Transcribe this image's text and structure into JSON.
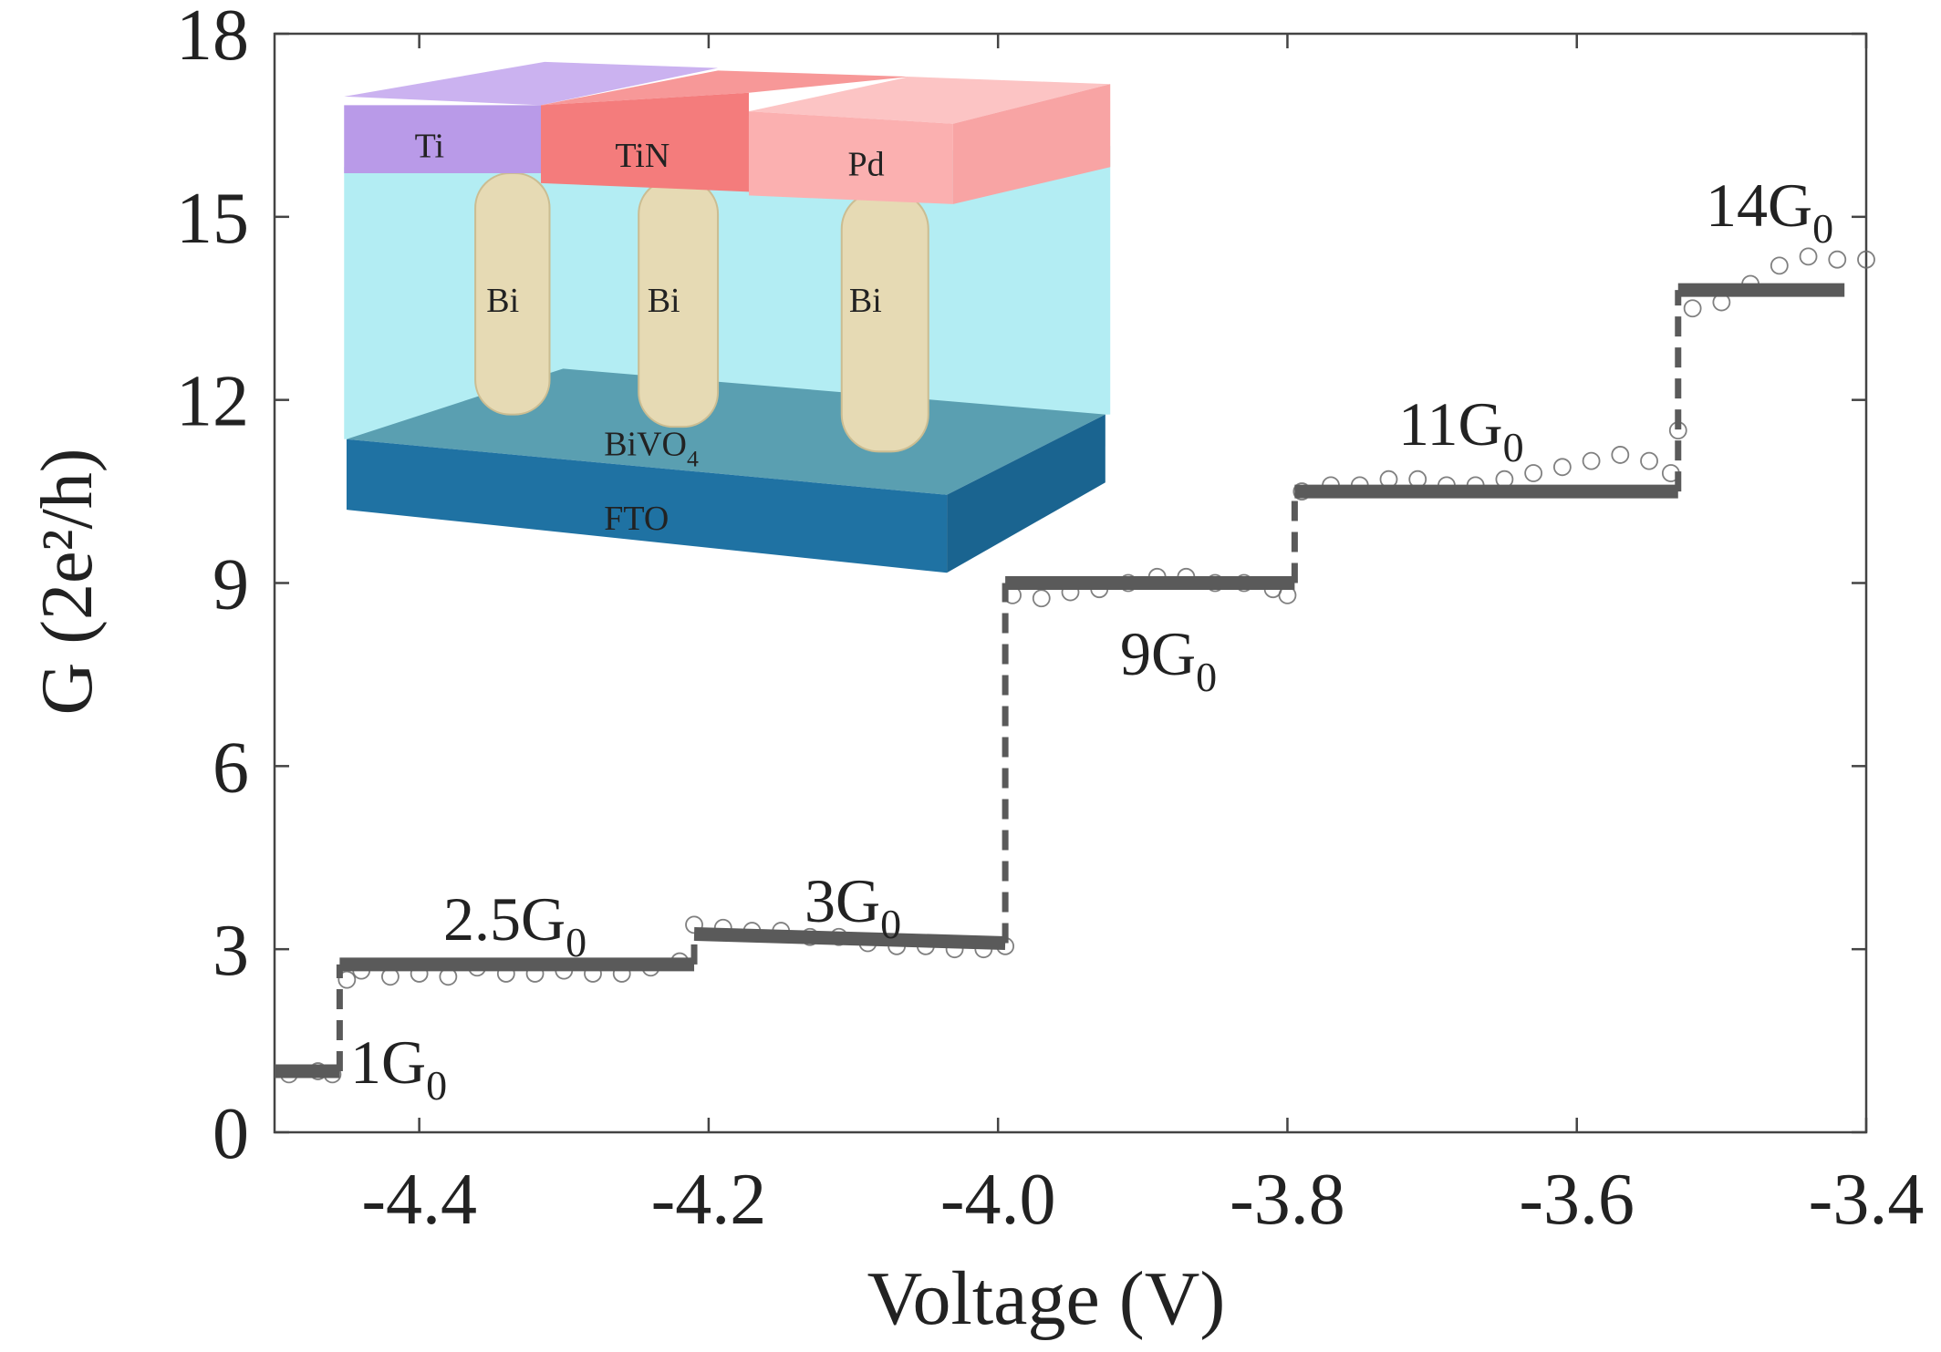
{
  "chart_data": {
    "type": "step",
    "xlabel": "Voltage (V)",
    "ylabel": "G (2e²/h)",
    "xlim": [
      -4.5,
      -3.4
    ],
    "xticks": [
      -4.4,
      -4.2,
      {
        "value": -4,
        "label": "-4.0"
      },
      -3.8,
      -3.6,
      -3.4
    ],
    "ylim": [
      0,
      18
    ],
    "yticks": [
      0,
      3,
      6,
      9,
      12,
      15,
      18
    ],
    "series": [
      {
        "type": "step",
        "color": "#5a5a5a",
        "x": [
          -4.5,
          -4.455,
          -4.455,
          -4.21,
          -4.21,
          -3.995,
          -3.995,
          -3.795,
          -3.795,
          -3.53,
          -3.53,
          -3.415
        ],
        "values": [
          1,
          1,
          2.75,
          2.75,
          3.25,
          3.1,
          9,
          9,
          10.5,
          10.5,
          13.8,
          13.8
        ]
      },
      {
        "type": "scatter",
        "color": "#6a6a6a",
        "x": [
          -4.49,
          -4.47,
          -4.46,
          -4.45,
          -4.44,
          -4.42,
          -4.4,
          -4.38,
          -4.36,
          -4.34,
          -4.32,
          -4.3,
          -4.28,
          -4.26,
          -4.24,
          -4.22,
          -4.21,
          -4.19,
          -4.17,
          -4.15,
          -4.13,
          -4.11,
          -4.09,
          -4.07,
          -4.05,
          -4.03,
          -4.01,
          -3.995,
          -3.99,
          -3.97,
          -3.95,
          -3.93,
          -3.91,
          -3.89,
          -3.87,
          -3.85,
          -3.83,
          -3.81,
          -3.8,
          -3.79,
          -3.77,
          -3.75,
          -3.73,
          -3.71,
          -3.69,
          -3.67,
          -3.65,
          -3.63,
          -3.61,
          -3.59,
          -3.57,
          -3.55,
          -3.535,
          -3.53,
          -3.52,
          -3.5,
          -3.48,
          -3.46,
          -3.44,
          -3.42,
          -3.4
        ],
        "values": [
          0.95,
          1,
          0.95,
          2.5,
          2.65,
          2.55,
          2.6,
          2.55,
          2.7,
          2.6,
          2.6,
          2.65,
          2.6,
          2.6,
          2.7,
          2.8,
          3.4,
          3.35,
          3.3,
          3.3,
          3.2,
          3.2,
          3.1,
          3.05,
          3.05,
          3,
          3,
          3.05,
          8.8,
          8.75,
          8.85,
          8.9,
          9,
          9.1,
          9.1,
          9,
          9,
          8.9,
          8.8,
          10.5,
          10.6,
          10.6,
          10.7,
          10.7,
          10.6,
          10.6,
          10.7,
          10.8,
          10.9,
          11,
          11.1,
          11,
          10.8,
          11.5,
          13.5,
          13.6,
          13.9,
          14.2,
          14.35,
          14.3,
          14.3
        ]
      }
    ],
    "annotations": [
      {
        "text": "1G",
        "sub": "0"
      },
      {
        "text": "2.5G",
        "sub": "0"
      },
      {
        "text": "3G",
        "sub": "0"
      },
      {
        "text": "9G",
        "sub": "0"
      },
      {
        "text": "11G",
        "sub": "0"
      },
      {
        "text": "14G",
        "sub": "0"
      }
    ]
  },
  "inset": {
    "labels": [
      "Ti",
      "TiN",
      "Pd",
      "Bi",
      "Bi",
      "Bi",
      "BiVO",
      "4",
      "FTO"
    ]
  }
}
